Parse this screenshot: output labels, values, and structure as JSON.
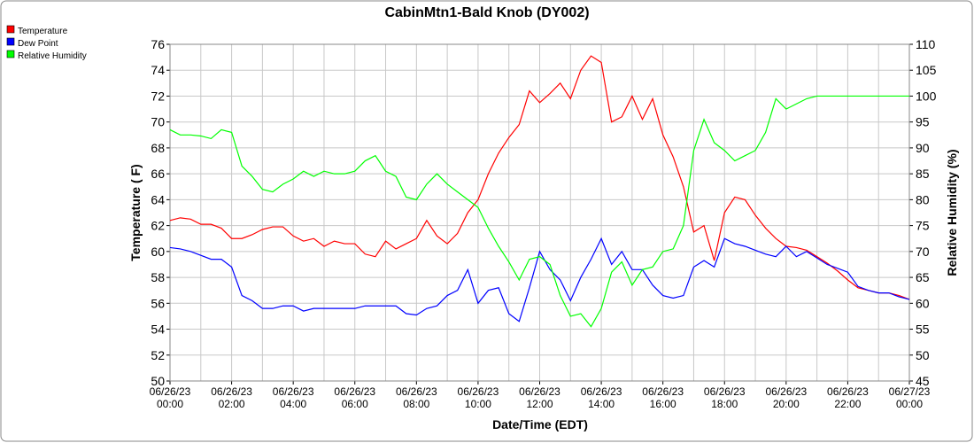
{
  "chart_data": {
    "type": "line",
    "title": "CabinMtn1-Bald Knob (DY002)",
    "xlabel": "Date/Time (EDT)",
    "ylabel": "Temperature ( F)",
    "y2label": "Relative Humidity (%)",
    "grid": true,
    "legend": "top-left",
    "x": [
      "06/26/23 00:00",
      "06/26/23 00:20",
      "06/26/23 00:40",
      "06/26/23 01:00",
      "06/26/23 01:20",
      "06/26/23 01:40",
      "06/26/23 02:00",
      "06/26/23 02:20",
      "06/26/23 02:40",
      "06/26/23 03:00",
      "06/26/23 03:20",
      "06/26/23 03:40",
      "06/26/23 04:00",
      "06/26/23 04:20",
      "06/26/23 04:40",
      "06/26/23 05:00",
      "06/26/23 05:20",
      "06/26/23 05:40",
      "06/26/23 06:00",
      "06/26/23 06:20",
      "06/26/23 06:40",
      "06/26/23 07:00",
      "06/26/23 07:20",
      "06/26/23 07:40",
      "06/26/23 08:00",
      "06/26/23 08:20",
      "06/26/23 08:40",
      "06/26/23 09:00",
      "06/26/23 09:20",
      "06/26/23 09:40",
      "06/26/23 10:00",
      "06/26/23 10:20",
      "06/26/23 10:40",
      "06/26/23 11:00",
      "06/26/23 11:20",
      "06/26/23 11:40",
      "06/26/23 12:00",
      "06/26/23 12:20",
      "06/26/23 12:40",
      "06/26/23 13:00",
      "06/26/23 13:20",
      "06/26/23 13:40",
      "06/26/23 14:00",
      "06/26/23 14:20",
      "06/26/23 14:40",
      "06/26/23 15:00",
      "06/26/23 15:20",
      "06/26/23 15:40",
      "06/26/23 16:00",
      "06/26/23 16:20",
      "06/26/23 16:40",
      "06/26/23 17:00",
      "06/26/23 17:20",
      "06/26/23 17:40",
      "06/26/23 18:00",
      "06/26/23 18:20",
      "06/26/23 18:40",
      "06/26/23 19:00",
      "06/26/23 19:20",
      "06/26/23 19:40",
      "06/26/23 20:00",
      "06/26/23 20:20",
      "06/26/23 20:40",
      "06/26/23 21:00",
      "06/26/23 21:20",
      "06/26/23 21:40",
      "06/26/23 22:00",
      "06/26/23 22:20",
      "06/26/23 22:40",
      "06/26/23 23:00",
      "06/26/23 23:20",
      "06/26/23 23:40",
      "06/27/23 00:00"
    ],
    "xlim": [
      "06/26/23 00:00",
      "06/27/23 00:00"
    ],
    "xticks": [
      "06/26/23 00:00",
      "06/26/23 02:00",
      "06/26/23 04:00",
      "06/26/23 06:00",
      "06/26/23 08:00",
      "06/26/23 10:00",
      "06/26/23 12:00",
      "06/26/23 14:00",
      "06/26/23 16:00",
      "06/26/23 18:00",
      "06/26/23 20:00",
      "06/26/23 22:00",
      "06/27/23 00:00"
    ],
    "ylim": [
      50,
      76
    ],
    "yticks": [
      50,
      52,
      54,
      56,
      58,
      60,
      62,
      64,
      66,
      68,
      70,
      72,
      74,
      76
    ],
    "y2lim": [
      45,
      110
    ],
    "y2ticks": [
      45,
      50,
      55,
      60,
      65,
      70,
      75,
      80,
      85,
      90,
      95,
      100,
      105,
      110
    ],
    "series": [
      {
        "name": "Temperature",
        "color": "#ff0000",
        "values": [
          62.4,
          62.6,
          62.5,
          62.1,
          62.1,
          61.8,
          61.0,
          61.0,
          61.3,
          61.7,
          61.9,
          61.9,
          61.2,
          60.8,
          61.0,
          60.4,
          60.8,
          60.6,
          60.6,
          59.8,
          59.6,
          60.8,
          60.2,
          60.6,
          61.0,
          62.4,
          61.2,
          60.6,
          61.4,
          63.0,
          64.0,
          66.0,
          67.6,
          68.8,
          69.8,
          72.4,
          71.5,
          72.2,
          73.0,
          71.8,
          74.0,
          75.1,
          74.6,
          70.0,
          70.4,
          72.0,
          70.2,
          71.8,
          69.0,
          67.3,
          65.0,
          61.5,
          62.0,
          59.3,
          63.0,
          64.2,
          64.0,
          62.8,
          61.8,
          61.0,
          60.4,
          60.3,
          60.1,
          59.6,
          59.1,
          58.5,
          57.8,
          57.2,
          57.0,
          56.8,
          56.8,
          56.6,
          56.3
        ]
      },
      {
        "name": "Dew Point",
        "color": "#0000ff",
        "values": [
          60.3,
          60.2,
          60.0,
          59.7,
          59.4,
          59.4,
          58.8,
          56.6,
          56.2,
          55.6,
          55.6,
          55.8,
          55.8,
          55.4,
          55.6,
          55.6,
          55.6,
          55.6,
          55.6,
          55.8,
          55.8,
          55.8,
          55.8,
          55.2,
          55.1,
          55.6,
          55.8,
          56.6,
          57.0,
          58.6,
          56.0,
          57.0,
          57.2,
          55.2,
          54.6,
          57.2,
          60.0,
          58.6,
          57.8,
          56.2,
          58.0,
          59.4,
          61.0,
          59.0,
          60.0,
          58.6,
          58.6,
          57.4,
          56.6,
          56.4,
          56.6,
          58.8,
          59.3,
          58.8,
          61.0,
          60.6,
          60.4,
          60.1,
          59.8,
          59.6,
          60.4,
          59.6,
          60.0,
          59.5,
          59.0,
          58.7,
          58.4,
          57.3,
          57.0,
          56.8,
          56.8,
          56.5,
          56.3
        ]
      },
      {
        "name": "Relative Humidity",
        "color": "#00ff00",
        "axis": "y2",
        "values": [
          93.5,
          92.5,
          92.5,
          92.3,
          91.8,
          93.5,
          93.0,
          86.5,
          84.5,
          82,
          81.5,
          83,
          84,
          85.5,
          84.5,
          85.5,
          85.0,
          85.0,
          85.5,
          87.5,
          88.5,
          85.5,
          84.5,
          80.5,
          80.0,
          83.0,
          85.0,
          83.0,
          81.5,
          80.0,
          78.5,
          74.5,
          71,
          68,
          64.5,
          68.5,
          69,
          67.5,
          61.5,
          57.5,
          58,
          55.5,
          59.0,
          66,
          68,
          63.5,
          66.5,
          67,
          70,
          70.5,
          75,
          89.5,
          95.5,
          91,
          89.5,
          87.5,
          88.5,
          89.5,
          93,
          99.5,
          97.5,
          98.5,
          99.5,
          100,
          100,
          100,
          100,
          100,
          100,
          100,
          100,
          100,
          100
        ]
      }
    ]
  }
}
